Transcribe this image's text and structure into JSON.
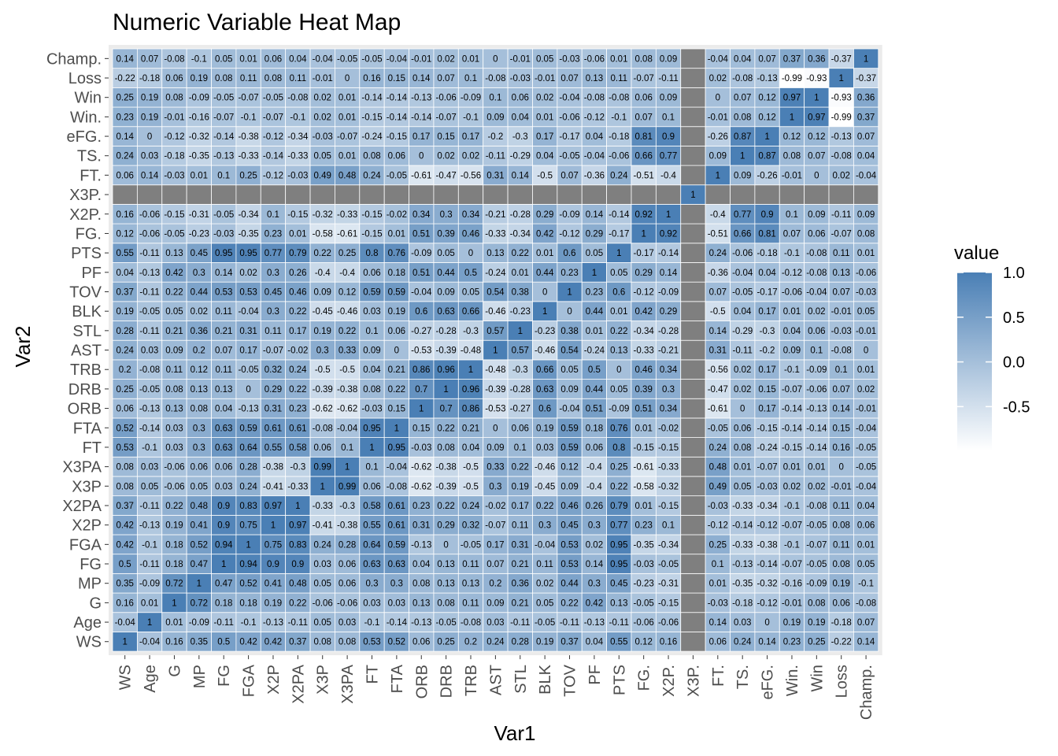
{
  "chart_data": {
    "type": "heatmap",
    "title": "Numeric Variable Heat Map",
    "xlabel": "Var1",
    "ylabel": "Var2",
    "legend_title": "value",
    "legend_placement": "right",
    "legend_ticks": [
      "1.0",
      "0.5",
      "0.0",
      "-0.5"
    ],
    "legend_tick_values": [
      1.0,
      0.5,
      0.0,
      -0.5
    ],
    "value_range": [
      -0.99,
      1
    ],
    "colors": {
      "low": "#ffffff",
      "high": "#4a7fb5",
      "na": "#7f7f7f",
      "panel": "#ebebeb",
      "grid": "#ffffff"
    },
    "vars": [
      "WS",
      "Age",
      "G",
      "MP",
      "FG",
      "FGA",
      "X2P",
      "X2PA",
      "X3P",
      "X3PA",
      "FT",
      "FTA",
      "ORB",
      "DRB",
      "TRB",
      "AST",
      "STL",
      "BLK",
      "TOV",
      "PF",
      "PTS",
      "FG.",
      "X2P.",
      "X3P.",
      "FT.",
      "TS.",
      "eFG.",
      "Win.",
      "Win",
      "Loss",
      "Champ."
    ],
    "matrix": [
      [
        1,
        -0.04,
        0.16,
        0.35,
        0.5,
        0.42,
        0.42,
        0.37,
        0.08,
        0.08,
        0.53,
        0.52,
        0.06,
        0.25,
        0.2,
        0.24,
        0.28,
        0.19,
        0.37,
        0.04,
        0.55,
        0.12,
        0.16,
        null,
        0.06,
        0.24,
        0.14,
        0.23,
        0.25,
        -0.22,
        0.14
      ],
      [
        -0.04,
        1,
        0.01,
        -0.09,
        -0.11,
        -0.1,
        -0.13,
        -0.11,
        0.05,
        0.03,
        -0.1,
        -0.14,
        -0.13,
        -0.05,
        -0.08,
        0.03,
        -0.11,
        -0.05,
        -0.11,
        -0.13,
        -0.11,
        -0.06,
        -0.06,
        null,
        0.14,
        0.03,
        0,
        0.19,
        0.19,
        -0.18,
        0.07
      ],
      [
        0.16,
        0.01,
        1,
        0.72,
        0.18,
        0.18,
        0.19,
        0.22,
        -0.06,
        -0.06,
        0.03,
        0.03,
        0.13,
        0.08,
        0.11,
        0.09,
        0.21,
        0.05,
        0.22,
        0.42,
        0.13,
        -0.05,
        -0.15,
        null,
        -0.03,
        -0.18,
        -0.12,
        -0.01,
        0.08,
        0.06,
        -0.08
      ],
      [
        0.35,
        -0.09,
        0.72,
        1,
        0.47,
        0.52,
        0.41,
        0.48,
        0.05,
        0.06,
        0.3,
        0.3,
        0.08,
        0.13,
        0.13,
        0.2,
        0.36,
        0.02,
        0.44,
        0.3,
        0.45,
        -0.23,
        -0.31,
        null,
        0.01,
        -0.35,
        -0.32,
        -0.16,
        -0.09,
        0.19,
        -0.1
      ],
      [
        0.5,
        -0.11,
        0.18,
        0.47,
        1,
        0.94,
        0.9,
        0.9,
        0.03,
        0.06,
        0.63,
        0.63,
        0.04,
        0.13,
        0.11,
        0.07,
        0.21,
        0.11,
        0.53,
        0.14,
        0.95,
        -0.03,
        -0.05,
        null,
        0.1,
        -0.13,
        -0.14,
        -0.07,
        -0.05,
        0.08,
        0.05
      ],
      [
        0.42,
        -0.1,
        0.18,
        0.52,
        0.94,
        1,
        0.75,
        0.83,
        0.24,
        0.28,
        0.64,
        0.59,
        -0.13,
        0,
        -0.05,
        0.17,
        0.31,
        -0.04,
        0.53,
        0.02,
        0.95,
        -0.35,
        -0.34,
        null,
        0.25,
        -0.33,
        -0.38,
        -0.1,
        -0.07,
        0.11,
        0.01
      ],
      [
        0.42,
        -0.13,
        0.19,
        0.41,
        0.9,
        0.75,
        1,
        0.97,
        -0.41,
        -0.38,
        0.55,
        0.61,
        0.31,
        0.29,
        0.32,
        -0.07,
        0.11,
        0.3,
        0.45,
        0.3,
        0.77,
        0.23,
        0.1,
        null,
        -0.12,
        -0.14,
        -0.12,
        -0.07,
        -0.05,
        0.08,
        0.06
      ],
      [
        0.37,
        -0.11,
        0.22,
        0.48,
        0.9,
        0.83,
        0.97,
        1,
        -0.33,
        -0.3,
        0.58,
        0.61,
        0.23,
        0.22,
        0.24,
        -0.02,
        0.17,
        0.22,
        0.46,
        0.26,
        0.79,
        0.01,
        -0.15,
        null,
        -0.03,
        -0.33,
        -0.34,
        -0.1,
        -0.08,
        0.11,
        0.04
      ],
      [
        0.08,
        0.05,
        -0.06,
        0.05,
        0.03,
        0.24,
        -0.41,
        -0.33,
        1,
        0.99,
        0.06,
        -0.08,
        -0.62,
        -0.39,
        -0.5,
        0.3,
        0.19,
        -0.45,
        0.09,
        -0.4,
        0.22,
        -0.58,
        -0.32,
        null,
        0.49,
        0.05,
        -0.03,
        0.02,
        0.02,
        -0.01,
        -0.04
      ],
      [
        0.08,
        0.03,
        -0.06,
        0.06,
        0.06,
        0.28,
        -0.38,
        -0.3,
        0.99,
        1,
        0.1,
        -0.04,
        -0.62,
        -0.38,
        -0.5,
        0.33,
        0.22,
        -0.46,
        0.12,
        -0.4,
        0.25,
        -0.61,
        -0.33,
        null,
        0.48,
        0.01,
        -0.07,
        0.01,
        0.01,
        0,
        -0.05
      ],
      [
        0.53,
        -0.1,
        0.03,
        0.3,
        0.63,
        0.64,
        0.55,
        0.58,
        0.06,
        0.1,
        1,
        0.95,
        -0.03,
        0.08,
        0.04,
        0.09,
        0.1,
        0.03,
        0.59,
        0.06,
        0.8,
        -0.15,
        -0.15,
        null,
        0.24,
        0.08,
        -0.24,
        -0.15,
        -0.14,
        0.16,
        -0.05
      ],
      [
        0.52,
        -0.14,
        0.03,
        0.3,
        0.63,
        0.59,
        0.61,
        0.61,
        -0.08,
        -0.04,
        0.95,
        1,
        0.15,
        0.22,
        0.21,
        0,
        0.06,
        0.19,
        0.59,
        0.18,
        0.76,
        0.01,
        -0.02,
        null,
        -0.05,
        0.06,
        -0.15,
        -0.14,
        -0.14,
        0.15,
        -0.04
      ],
      [
        0.06,
        -0.13,
        0.13,
        0.08,
        0.04,
        -0.13,
        0.31,
        0.23,
        -0.62,
        -0.62,
        -0.03,
        0.15,
        1,
        0.7,
        0.86,
        -0.53,
        -0.27,
        0.6,
        -0.04,
        0.51,
        -0.09,
        0.51,
        0.34,
        null,
        -0.61,
        0,
        0.17,
        -0.14,
        -0.13,
        0.14,
        -0.01
      ],
      [
        0.25,
        -0.05,
        0.08,
        0.13,
        0.13,
        0,
        0.29,
        0.22,
        -0.39,
        -0.38,
        0.08,
        0.22,
        0.7,
        1,
        0.96,
        -0.39,
        -0.28,
        0.63,
        0.09,
        0.44,
        0.05,
        0.39,
        0.3,
        null,
        -0.47,
        0.02,
        0.15,
        -0.07,
        -0.06,
        0.07,
        0.02
      ],
      [
        0.2,
        -0.08,
        0.11,
        0.12,
        0.11,
        -0.05,
        0.32,
        0.24,
        -0.5,
        -0.5,
        0.04,
        0.21,
        0.86,
        0.96,
        1,
        -0.48,
        -0.3,
        0.66,
        0.05,
        0.5,
        0,
        0.46,
        0.34,
        null,
        -0.56,
        0.02,
        0.17,
        -0.1,
        -0.09,
        0.1,
        0.01
      ],
      [
        0.24,
        0.03,
        0.09,
        0.2,
        0.07,
        0.17,
        -0.07,
        -0.02,
        0.3,
        0.33,
        0.09,
        0,
        -0.53,
        -0.39,
        -0.48,
        1,
        0.57,
        -0.46,
        0.54,
        -0.24,
        0.13,
        -0.33,
        -0.21,
        null,
        0.31,
        -0.11,
        -0.2,
        0.09,
        0.1,
        -0.08,
        0
      ],
      [
        0.28,
        -0.11,
        0.21,
        0.36,
        0.21,
        0.31,
        0.11,
        0.17,
        0.19,
        0.22,
        0.1,
        0.06,
        -0.27,
        -0.28,
        -0.3,
        0.57,
        1,
        -0.23,
        0.38,
        0.01,
        0.22,
        -0.34,
        -0.28,
        null,
        0.14,
        -0.29,
        -0.3,
        0.04,
        0.06,
        -0.03,
        -0.01
      ],
      [
        0.19,
        -0.05,
        0.05,
        0.02,
        0.11,
        -0.04,
        0.3,
        0.22,
        -0.45,
        -0.46,
        0.03,
        0.19,
        0.6,
        0.63,
        0.66,
        -0.46,
        -0.23,
        1,
        0,
        0.44,
        0.01,
        0.42,
        0.29,
        null,
        -0.5,
        0.04,
        0.17,
        0.01,
        0.02,
        -0.01,
        0.05
      ],
      [
        0.37,
        -0.11,
        0.22,
        0.44,
        0.53,
        0.53,
        0.45,
        0.46,
        0.09,
        0.12,
        0.59,
        0.59,
        -0.04,
        0.09,
        0.05,
        0.54,
        0.38,
        0,
        1,
        0.23,
        0.6,
        -0.12,
        -0.09,
        null,
        0.07,
        -0.05,
        -0.17,
        -0.06,
        -0.04,
        0.07,
        -0.03
      ],
      [
        0.04,
        -0.13,
        0.42,
        0.3,
        0.14,
        0.02,
        0.3,
        0.26,
        -0.4,
        -0.4,
        0.06,
        0.18,
        0.51,
        0.44,
        0.5,
        -0.24,
        0.01,
        0.44,
        0.23,
        1,
        0.05,
        0.29,
        0.14,
        null,
        -0.36,
        -0.04,
        0.04,
        -0.12,
        -0.08,
        0.13,
        -0.06
      ],
      [
        0.55,
        -0.11,
        0.13,
        0.45,
        0.95,
        0.95,
        0.77,
        0.79,
        0.22,
        0.25,
        0.8,
        0.76,
        -0.09,
        0.05,
        0,
        0.13,
        0.22,
        0.01,
        0.6,
        0.05,
        1,
        -0.17,
        -0.14,
        null,
        0.24,
        -0.06,
        -0.18,
        -0.1,
        -0.08,
        0.11,
        0.01
      ],
      [
        0.12,
        -0.06,
        -0.05,
        -0.23,
        -0.03,
        -0.35,
        0.23,
        0.01,
        -0.58,
        -0.61,
        -0.15,
        0.01,
        0.51,
        0.39,
        0.46,
        -0.33,
        -0.34,
        0.42,
        -0.12,
        0.29,
        -0.17,
        1,
        0.92,
        null,
        -0.51,
        0.66,
        0.81,
        0.07,
        0.06,
        -0.07,
        0.08
      ],
      [
        0.16,
        -0.06,
        -0.15,
        -0.31,
        -0.05,
        -0.34,
        0.1,
        -0.15,
        -0.32,
        -0.33,
        -0.15,
        -0.02,
        0.34,
        0.3,
        0.34,
        -0.21,
        -0.28,
        0.29,
        -0.09,
        0.14,
        -0.14,
        0.92,
        1,
        null,
        -0.4,
        0.77,
        0.9,
        0.1,
        0.09,
        -0.11,
        0.09
      ],
      [
        null,
        null,
        null,
        null,
        null,
        null,
        null,
        null,
        null,
        null,
        null,
        null,
        null,
        null,
        null,
        null,
        null,
        null,
        null,
        null,
        null,
        null,
        null,
        1,
        null,
        null,
        null,
        null,
        null,
        null,
        null
      ],
      [
        0.06,
        0.14,
        -0.03,
        0.01,
        0.1,
        0.25,
        -0.12,
        -0.03,
        0.49,
        0.48,
        0.24,
        -0.05,
        -0.61,
        -0.47,
        -0.56,
        0.31,
        0.14,
        -0.5,
        0.07,
        -0.36,
        0.24,
        -0.51,
        -0.4,
        null,
        1,
        0.09,
        -0.26,
        -0.01,
        0,
        0.02,
        -0.04
      ],
      [
        0.24,
        0.03,
        -0.18,
        -0.35,
        -0.13,
        -0.33,
        -0.14,
        -0.33,
        0.05,
        0.01,
        0.08,
        0.06,
        0,
        0.02,
        0.02,
        -0.11,
        -0.29,
        0.04,
        -0.05,
        -0.04,
        -0.06,
        0.66,
        0.77,
        null,
        0.09,
        1,
        0.87,
        0.08,
        0.07,
        -0.08,
        0.04
      ],
      [
        0.14,
        0,
        -0.12,
        -0.32,
        -0.14,
        -0.38,
        -0.12,
        -0.34,
        -0.03,
        -0.07,
        -0.24,
        -0.15,
        0.17,
        0.15,
        0.17,
        -0.2,
        -0.3,
        0.17,
        -0.17,
        0.04,
        -0.18,
        0.81,
        0.9,
        null,
        -0.26,
        0.87,
        1,
        0.12,
        0.12,
        -0.13,
        0.07
      ],
      [
        0.23,
        0.19,
        -0.01,
        -0.16,
        -0.07,
        -0.1,
        -0.07,
        -0.1,
        0.02,
        0.01,
        -0.15,
        -0.14,
        -0.14,
        -0.07,
        -0.1,
        0.09,
        0.04,
        0.01,
        -0.06,
        -0.12,
        -0.1,
        0.07,
        0.1,
        null,
        -0.01,
        0.08,
        0.12,
        1,
        0.97,
        -0.99,
        0.37
      ],
      [
        0.25,
        0.19,
        0.08,
        -0.09,
        -0.05,
        -0.07,
        -0.05,
        -0.08,
        0.02,
        0.01,
        -0.14,
        -0.14,
        -0.13,
        -0.06,
        -0.09,
        0.1,
        0.06,
        0.02,
        -0.04,
        -0.08,
        -0.08,
        0.06,
        0.09,
        null,
        0,
        0.07,
        0.12,
        0.97,
        1,
        -0.93,
        0.36
      ],
      [
        -0.22,
        -0.18,
        0.06,
        0.19,
        0.08,
        0.11,
        0.08,
        0.11,
        -0.01,
        0,
        0.16,
        0.15,
        0.14,
        0.07,
        0.1,
        -0.08,
        -0.03,
        -0.01,
        0.07,
        0.13,
        0.11,
        -0.07,
        -0.11,
        null,
        0.02,
        -0.08,
        -0.13,
        -0.99,
        -0.93,
        1,
        -0.37
      ],
      [
        0.14,
        0.07,
        -0.08,
        -0.1,
        0.05,
        0.01,
        0.06,
        0.04,
        -0.04,
        -0.05,
        -0.05,
        -0.04,
        -0.01,
        0.02,
        0.01,
        0,
        -0.01,
        0.05,
        -0.03,
        -0.06,
        0.01,
        0.08,
        0.09,
        null,
        -0.04,
        0.04,
        0.07,
        0.37,
        0.36,
        -0.37,
        1
      ]
    ]
  }
}
